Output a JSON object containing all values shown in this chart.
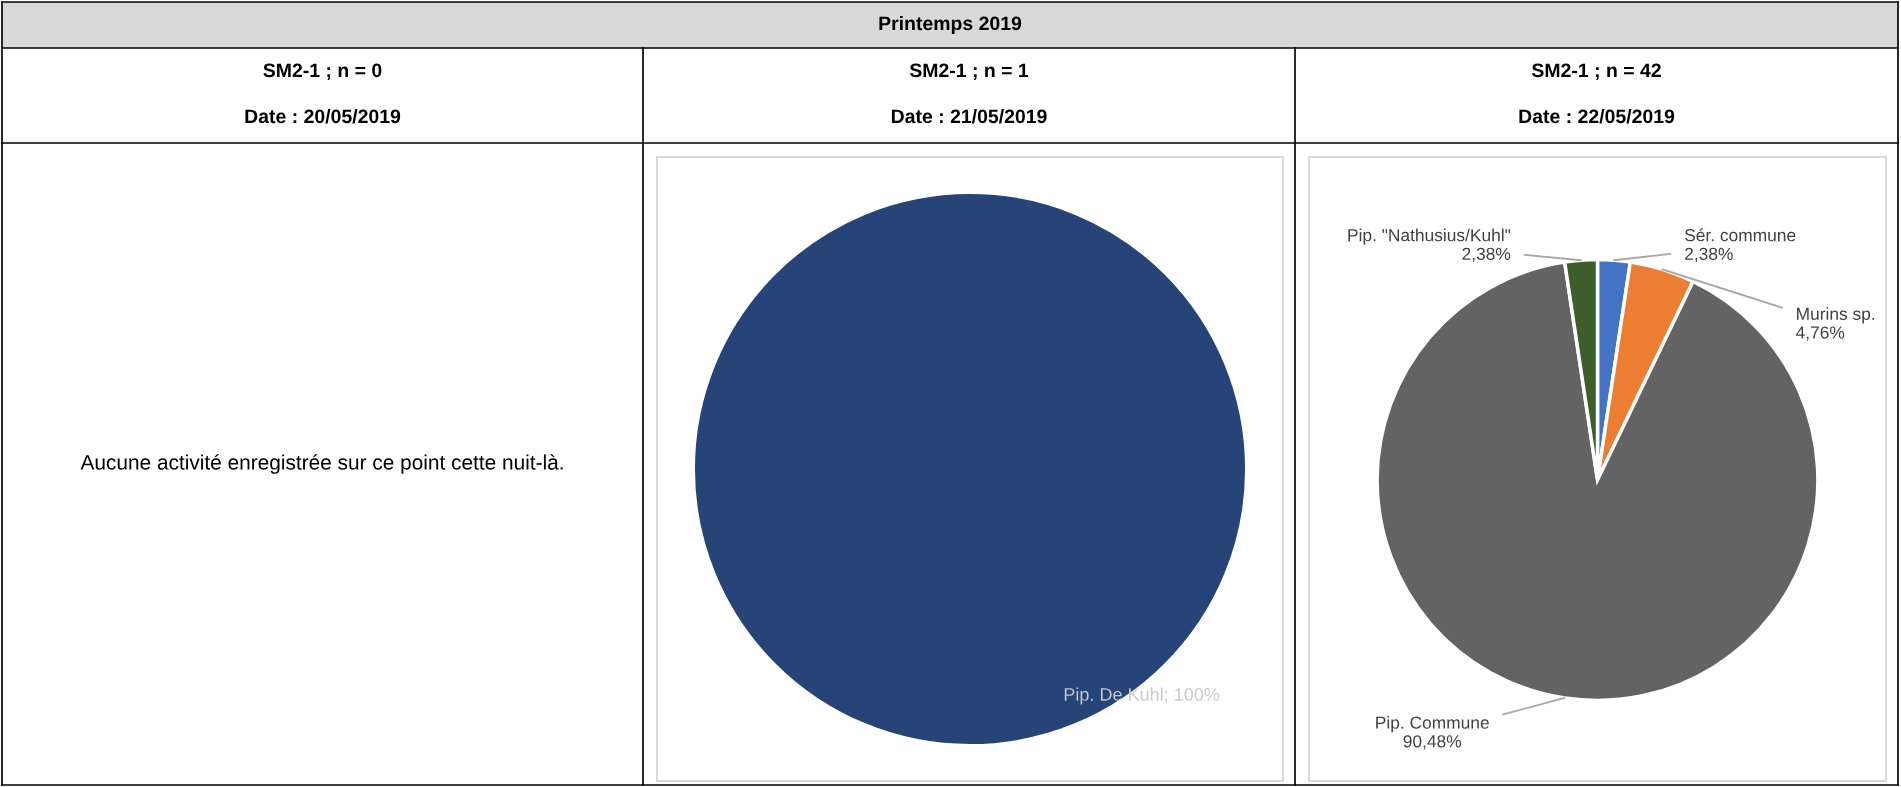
{
  "chart_data": [
    {
      "type": "other",
      "title": "SM2-1 ; n = 0",
      "subtitle": "Date : 20/05/2019",
      "annotations": [
        "Printemps 2019",
        "Aucune activité enregistrée sur ce point cette nuit-là."
      ]
    },
    {
      "type": "pie",
      "title": "SM2-1 ; n = 1",
      "subtitle": "Date : 21/05/2019",
      "categories": [
        "Pip. De Kuhl"
      ],
      "values": [
        100
      ],
      "colors": [
        "#264478"
      ],
      "value_labels": [
        "100%"
      ]
    },
    {
      "type": "pie",
      "title": "SM2-1 ; n = 42",
      "subtitle": "Date : 22/05/2019",
      "categories": [
        "Sér. commune",
        "Murins sp.",
        "Pip. Commune",
        "Pip. \"Nathusius/Kuhl\""
      ],
      "values": [
        2.38,
        4.76,
        90.48,
        2.38
      ],
      "colors": [
        "#4472c4",
        "#ed7d31",
        "#636363",
        "#3b5e2b"
      ],
      "value_labels": [
        "2,38%",
        "4,76%",
        "90,48%",
        "2,38%"
      ]
    }
  ]
}
